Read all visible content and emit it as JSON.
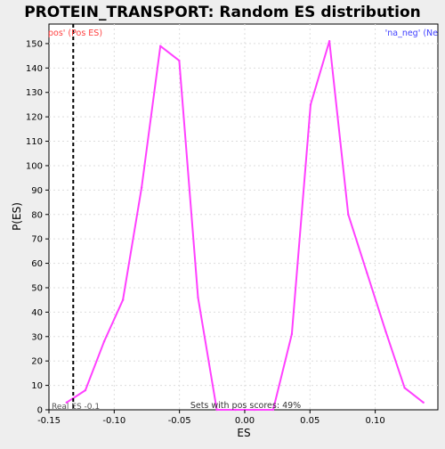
{
  "chart_data": {
    "type": "line",
    "title": "PROTEIN_TRANSPORT: Random ES distribution",
    "xlabel": "ES",
    "ylabel": "P(ES)",
    "xlim": [
      -0.15,
      0.148
    ],
    "ylim": [
      0,
      158
    ],
    "x_ticks": [
      -0.15,
      -0.1,
      -0.05,
      0.0,
      0.05,
      0.1
    ],
    "x_tick_labels": [
      "-0.15",
      "-0.10",
      "-0.05",
      "0.00",
      "0.05",
      "0.10"
    ],
    "y_ticks": [
      0,
      10,
      20,
      30,
      40,
      50,
      60,
      70,
      80,
      90,
      100,
      110,
      120,
      130,
      140,
      150
    ],
    "y_tick_labels": [
      "0",
      "10",
      "20",
      "30",
      "40",
      "50",
      "60",
      "70",
      "80",
      "90",
      "100",
      "110",
      "120",
      "130",
      "140",
      "150"
    ],
    "grid": true,
    "series": [
      {
        "color": "#ff40ff",
        "x": [
          -0.1365,
          -0.1221,
          -0.1077,
          -0.0933,
          -0.079,
          -0.0646,
          -0.0502,
          -0.0358,
          -0.0214,
          -0.007,
          0.0074,
          0.0218,
          0.0361,
          0.0505,
          0.0649,
          0.0793,
          0.0937,
          0.1081,
          0.1225,
          0.1369
        ],
        "y": [
          3,
          8,
          28,
          45,
          91,
          149,
          143,
          46,
          0,
          0,
          0,
          0,
          31,
          125,
          151,
          80,
          56,
          32,
          9,
          3
        ]
      }
    ],
    "real_es": -0.1314,
    "real_es_label": "Real ES -0.1",
    "legend_left": "pos' (Pos ES)",
    "legend_left_color": "#ff4040",
    "legend_right": "'na_neg' (Ne",
    "legend_right_color": "#4040ff",
    "annotation": "Sets with pos scores: 49%"
  }
}
